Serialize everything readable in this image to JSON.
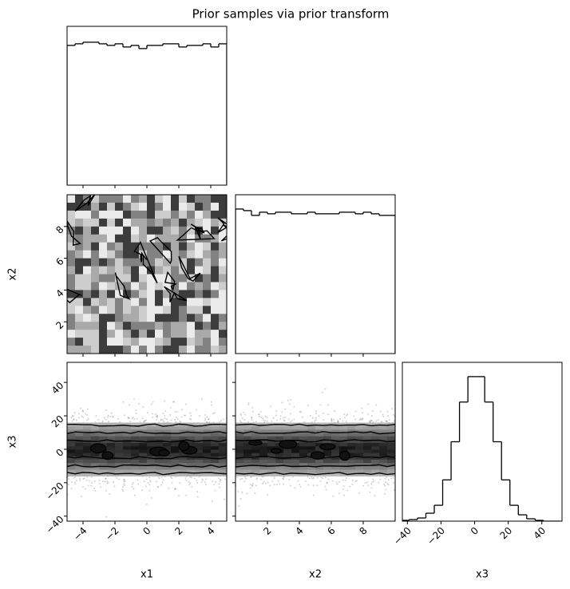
{
  "chart_data": {
    "type": "corner",
    "title": "Prior samples via prior transform",
    "parameters": [
      {
        "name": "x1",
        "lim": [
          -5,
          5
        ],
        "ticks": [
          {
            "value": -4,
            "label": "−4"
          },
          {
            "value": -2,
            "label": "−2"
          },
          0,
          2,
          4
        ],
        "hist": {
          "bins": [
            -5,
            -4.5,
            -4,
            -3.5,
            -3,
            -2.5,
            -2,
            -1.5,
            -1,
            -0.5,
            0,
            0.5,
            1,
            1.5,
            2,
            2.5,
            3,
            3.5,
            4,
            4.5,
            5
          ],
          "values": [
            88,
            89,
            90,
            90,
            89,
            88,
            89,
            87,
            88,
            86,
            88,
            88,
            89,
            89,
            87,
            88,
            88,
            89,
            87,
            89
          ],
          "ylim": [
            0,
            100
          ]
        }
      },
      {
        "name": "x2",
        "lim": [
          0,
          10
        ],
        "ticks": [
          2,
          4,
          6,
          8
        ],
        "hist": {
          "bins": [
            0,
            0.5,
            1,
            1.5,
            2,
            2.5,
            3,
            3.5,
            4,
            4.5,
            5,
            5.5,
            6,
            6.5,
            7,
            7.5,
            8,
            8.5,
            9,
            9.5,
            10
          ],
          "values": [
            91,
            90,
            87,
            89,
            88,
            89,
            89,
            88,
            88,
            89,
            88,
            88,
            88,
            89,
            89,
            88,
            89,
            88,
            87,
            87
          ],
          "ylim": [
            0,
            100
          ]
        }
      },
      {
        "name": "x3",
        "lim": [
          -43,
          52
        ],
        "ticks": [
          {
            "value": -40,
            "label": "−40"
          },
          {
            "value": -20,
            "label": "−20"
          },
          0,
          20,
          40
        ],
        "hist": {
          "bins": [
            -44,
            -39,
            -34,
            -29,
            -24,
            -19,
            -14,
            -9,
            -4,
            1,
            6,
            11,
            16,
            21,
            26,
            31,
            36,
            41,
            46,
            51
          ],
          "values": [
            1,
            2,
            4,
            10,
            20,
            52,
            100,
            150,
            182,
            182,
            150,
            100,
            52,
            20,
            8,
            3,
            1,
            0,
            0
          ],
          "ylim": [
            0,
            200
          ]
        }
      }
    ]
  }
}
